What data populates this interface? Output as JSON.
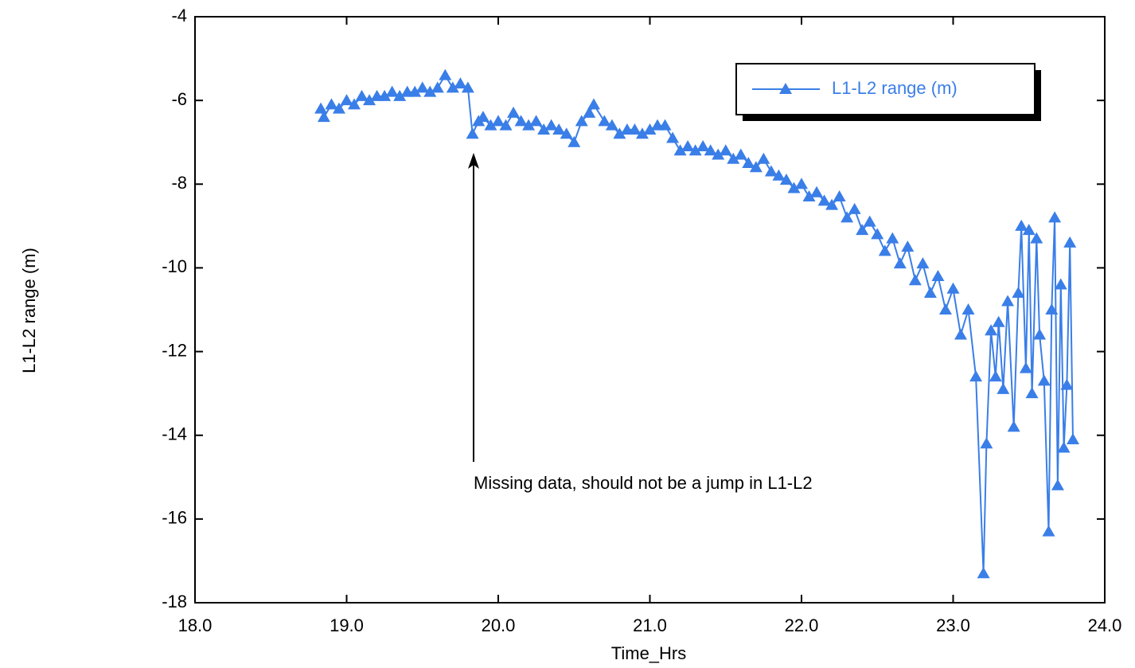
{
  "chart_data": {
    "type": "line",
    "xlabel": "Time_Hrs",
    "ylabel": "L1-L2 range (m)",
    "annotation": "Missing data, should not be a jump in L1-L2",
    "x": [
      18.83,
      18.85,
      18.9,
      18.95,
      19.0,
      19.05,
      19.1,
      19.15,
      19.2,
      19.25,
      19.3,
      19.35,
      19.4,
      19.45,
      19.5,
      19.55,
      19.6,
      19.65,
      19.7,
      19.75,
      19.8,
      19.83,
      19.87,
      19.9,
      19.95,
      20.0,
      20.05,
      20.1,
      20.15,
      20.2,
      20.25,
      20.3,
      20.35,
      20.4,
      20.45,
      20.5,
      20.55,
      20.6,
      20.63,
      20.7,
      20.75,
      20.8,
      20.85,
      20.9,
      20.95,
      21.0,
      21.05,
      21.1,
      21.15,
      21.2,
      21.25,
      21.3,
      21.35,
      21.4,
      21.45,
      21.5,
      21.55,
      21.6,
      21.65,
      21.7,
      21.75,
      21.8,
      21.85,
      21.9,
      21.95,
      22.0,
      22.05,
      22.1,
      22.15,
      22.2,
      22.25,
      22.3,
      22.35,
      22.4,
      22.45,
      22.5,
      22.55,
      22.6,
      22.65,
      22.7,
      22.75,
      22.8,
      22.85,
      22.9,
      22.95,
      23.0,
      23.05,
      23.1,
      23.15,
      23.2,
      23.22,
      23.25,
      23.28,
      23.3,
      23.33,
      23.36,
      23.4,
      23.43,
      23.45,
      23.48,
      23.5,
      23.52,
      23.55,
      23.57,
      23.6,
      23.63,
      23.65,
      23.67,
      23.69,
      23.71,
      23.73,
      23.75,
      23.77,
      23.79
    ],
    "series": [
      {
        "name": "L1-L2 range (m)",
        "color": "#3a7ee8",
        "values": [
          -6.2,
          -6.4,
          -6.1,
          -6.2,
          -6.0,
          -6.1,
          -5.9,
          -6.0,
          -5.9,
          -5.9,
          -5.8,
          -5.9,
          -5.8,
          -5.8,
          -5.7,
          -5.8,
          -5.7,
          -5.4,
          -5.7,
          -5.6,
          -5.7,
          -6.8,
          -6.5,
          -6.4,
          -6.6,
          -6.5,
          -6.6,
          -6.3,
          -6.5,
          -6.6,
          -6.5,
          -6.7,
          -6.6,
          -6.7,
          -6.8,
          -7.0,
          -6.5,
          -6.3,
          -6.1,
          -6.5,
          -6.6,
          -6.8,
          -6.7,
          -6.7,
          -6.8,
          -6.7,
          -6.6,
          -6.6,
          -6.9,
          -7.2,
          -7.1,
          -7.2,
          -7.1,
          -7.2,
          -7.3,
          -7.2,
          -7.4,
          -7.3,
          -7.5,
          -7.6,
          -7.4,
          -7.7,
          -7.8,
          -7.9,
          -8.1,
          -8.0,
          -8.3,
          -8.2,
          -8.4,
          -8.5,
          -8.3,
          -8.8,
          -8.6,
          -9.1,
          -8.9,
          -9.2,
          -9.6,
          -9.3,
          -9.9,
          -9.5,
          -10.3,
          -9.9,
          -10.6,
          -10.2,
          -11.0,
          -10.5,
          -11.6,
          -11.0,
          -12.6,
          -17.3,
          -14.2,
          -11.5,
          -12.6,
          -11.3,
          -12.9,
          -10.8,
          -13.8,
          -10.6,
          -9.0,
          -12.4,
          -9.1,
          -13.0,
          -9.3,
          -11.6,
          -12.7,
          -16.3,
          -11.0,
          -8.8,
          -15.2,
          -10.4,
          -14.3,
          -12.8,
          -9.4,
          -14.1
        ]
      }
    ],
    "xlim": [
      18,
      24
    ],
    "xticks": [
      {
        "value": 18,
        "label": "18.0"
      },
      {
        "value": 19,
        "label": "19.0"
      },
      {
        "value": 20,
        "label": "20.0"
      },
      {
        "value": 21,
        "label": "21.0"
      },
      {
        "value": 22,
        "label": "22.0"
      },
      {
        "value": 23,
        "label": "23.0"
      },
      {
        "value": 24,
        "label": "24.0"
      }
    ],
    "ylim": [
      -18,
      -4
    ],
    "yticks": [
      -4,
      -6,
      -8,
      -10,
      -12,
      -14,
      -16,
      -18
    ],
    "grid": false,
    "legend": "upper right"
  }
}
